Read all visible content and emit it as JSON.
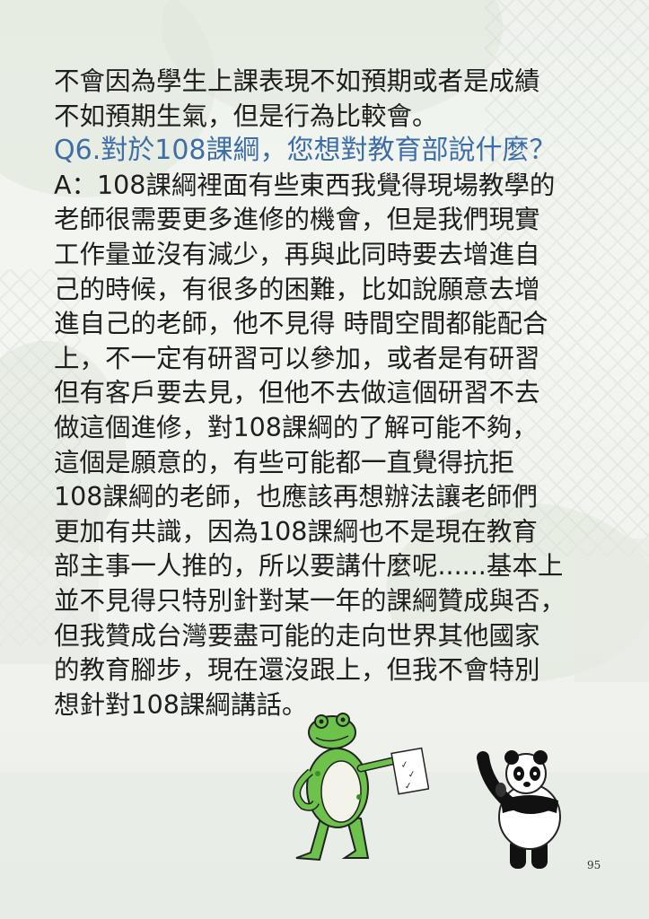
{
  "text": {
    "intro_lines": [
      "不會因為學生上課表現不如預期或者是成績",
      "不如預期生氣，但是行為比較會。"
    ],
    "question": "Q6.對於108課綱，您想對教育部說什麼？",
    "answer_lines": [
      "A：108課綱裡面有些東西我覺得現場教學的",
      "老師很需要更多進修的機會，但是我們現實",
      "工作量並沒有減少，再與此同時要去增進自",
      "己的時候，有很多的困難，比如說願意去增",
      "進自己的老師，他不見得 時間空間都能配合",
      "上，不一定有研習可以參加，或者是有研習",
      "但有客戶要去見，但他不去做這個研習不去",
      "做這個進修，對108課綱的了解可能不夠，",
      "這個是願意的，有些可能都一直覺得抗拒",
      "108課綱的老師，也應該再想辦法讓老師們",
      "更加有共識，因為108課綱也不是現在教育",
      "部主事一人推的，所以要講什麼呢......基本上",
      "並不見得只特別針對某一年的課綱贊成與否，",
      "但我贊成台灣要盡可能的走向世界其他國家",
      "的教育腳步，現在還沒跟上，但我不會特別",
      "想針對108課綱講話。"
    ]
  },
  "page_number": "95",
  "colors": {
    "question": "#3d6ea7",
    "body_text": "#1e1e1e",
    "frog_green": "#6cc24a",
    "panda_black": "#111111"
  }
}
